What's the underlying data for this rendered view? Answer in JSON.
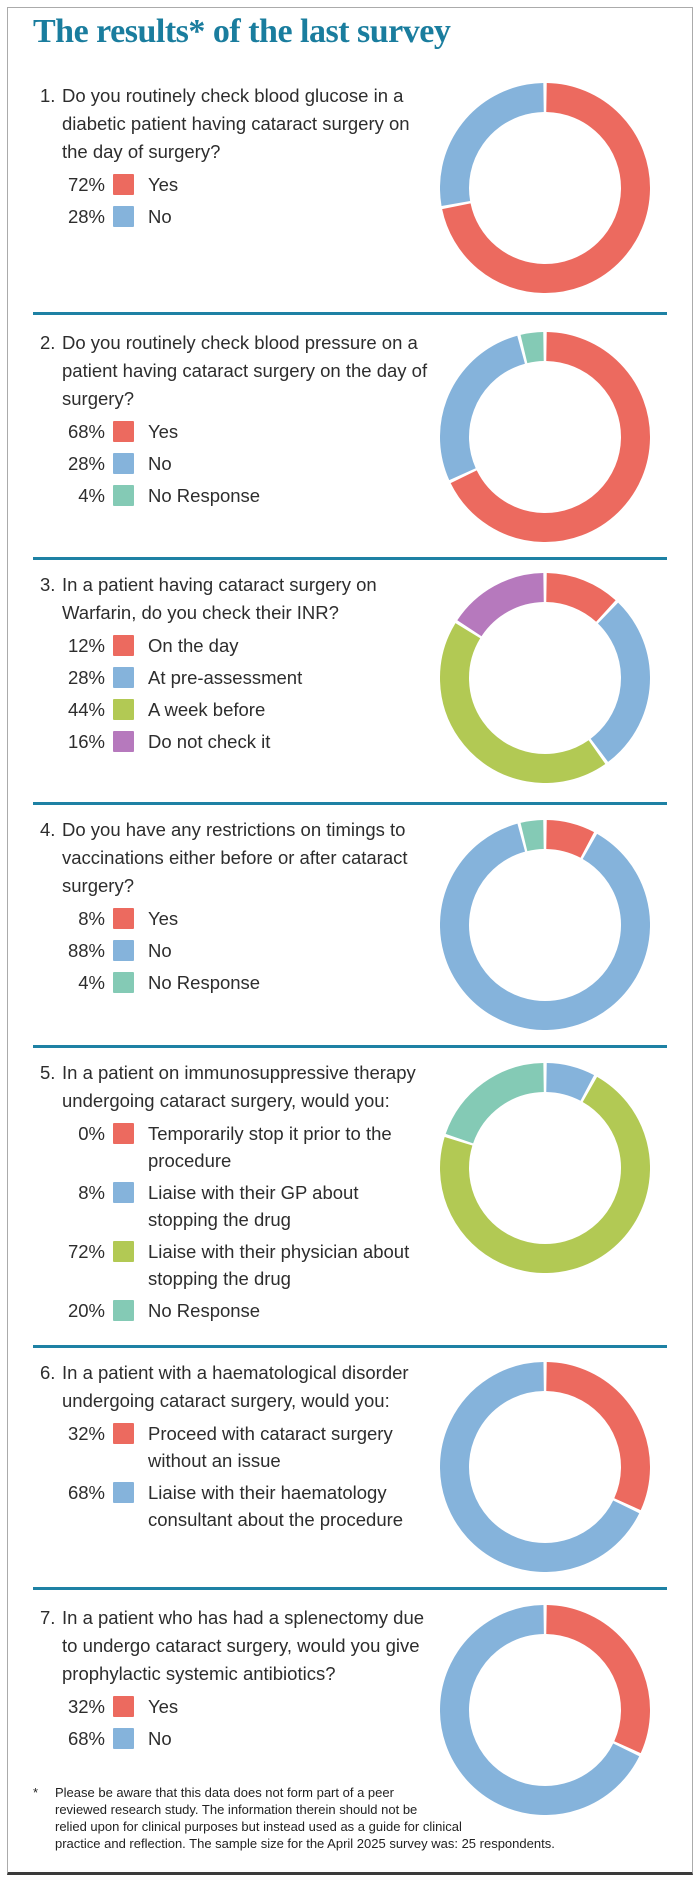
{
  "title": "The results* of the last survey",
  "colors": {
    "title_teal": "#1a7d9e",
    "divider_teal": "#1e81a4",
    "red": "#ec6a5f",
    "blue": "#85b3db",
    "teal_green": "#84cab5",
    "olive_green": "#b2c954",
    "purple": "#b679bd"
  },
  "chart_data": [
    {
      "type": "pie",
      "number": "1.",
      "question": "Do you routinely check blood glucose in a diabetic patient having cataract surgery on the day of surgery?",
      "slices": [
        {
          "pct": "72%",
          "value": 72,
          "label": "Yes",
          "color": "#ec6a5f"
        },
        {
          "pct": "28%",
          "value": 28,
          "label": "No",
          "color": "#85b3db"
        }
      ]
    },
    {
      "type": "pie",
      "number": "2.",
      "question": "Do you routinely check blood pressure on a patient having cataract surgery on the day of surgery?",
      "slices": [
        {
          "pct": "68%",
          "value": 68,
          "label": "Yes",
          "color": "#ec6a5f"
        },
        {
          "pct": "28%",
          "value": 28,
          "label": "No",
          "color": "#85b3db"
        },
        {
          "pct": "4%",
          "value": 4,
          "label": "No Response",
          "color": "#84cab5"
        }
      ]
    },
    {
      "type": "pie",
      "number": "3.",
      "question": "In a patient having cataract surgery on Warfarin, do you check their INR?",
      "slices": [
        {
          "pct": "12%",
          "value": 12,
          "label": "On the day",
          "color": "#ec6a5f"
        },
        {
          "pct": "28%",
          "value": 28,
          "label": "At pre-assessment",
          "color": "#85b3db"
        },
        {
          "pct": "44%",
          "value": 44,
          "label": "A week before",
          "color": "#b2c954"
        },
        {
          "pct": "16%",
          "value": 16,
          "label": "Do not check it",
          "color": "#b679bd"
        }
      ]
    },
    {
      "type": "pie",
      "number": "4.",
      "question": "Do you have any restrictions on timings to vaccinations either before or after cataract surgery?",
      "slices": [
        {
          "pct": "8%",
          "value": 8,
          "label": "Yes",
          "color": "#ec6a5f"
        },
        {
          "pct": "88%",
          "value": 88,
          "label": "No",
          "color": "#85b3db"
        },
        {
          "pct": "4%",
          "value": 4,
          "label": "No Response",
          "color": "#84cab5"
        }
      ]
    },
    {
      "type": "pie",
      "number": "5.",
      "question": "In a patient on immunosuppressive therapy undergoing cataract surgery, would you:",
      "slices": [
        {
          "pct": "0%",
          "value": 0,
          "label": "Temporarily stop it prior to the procedure",
          "color": "#ec6a5f"
        },
        {
          "pct": "8%",
          "value": 8,
          "label": "Liaise with their GP about stopping the drug",
          "color": "#85b3db"
        },
        {
          "pct": "72%",
          "value": 72,
          "label": "Liaise with their physician about stopping the drug",
          "color": "#b2c954"
        },
        {
          "pct": "20%",
          "value": 20,
          "label": "No Response",
          "color": "#84cab5"
        }
      ]
    },
    {
      "type": "pie",
      "number": "6.",
      "question": "In a patient with a haematological disorder undergoing cataract surgery, would you:",
      "slices": [
        {
          "pct": "32%",
          "value": 32,
          "label": "Proceed with cataract surgery without an issue",
          "color": "#ec6a5f"
        },
        {
          "pct": "68%",
          "value": 68,
          "label": "Liaise with their haematology consultant about the procedure",
          "color": "#85b3db"
        }
      ]
    },
    {
      "type": "pie",
      "number": "7.",
      "question": "In a patient who has had a splenectomy due to undergo cataract surgery, would you give prophylactic systemic antibiotics?",
      "slices": [
        {
          "pct": "32%",
          "value": 32,
          "label": "Yes",
          "color": "#ec6a5f"
        },
        {
          "pct": "68%",
          "value": 68,
          "label": "No",
          "color": "#85b3db"
        }
      ]
    }
  ],
  "footnote": {
    "marker": "*",
    "lines": [
      "Please be aware that this data does not form part of a peer",
      "reviewed research study. The information therein should not be",
      "relied upon for clinical purposes but instead used as a guide for clinical",
      "practice and reflection. The sample size for the April 2025 survey was: 25 respondents."
    ]
  }
}
